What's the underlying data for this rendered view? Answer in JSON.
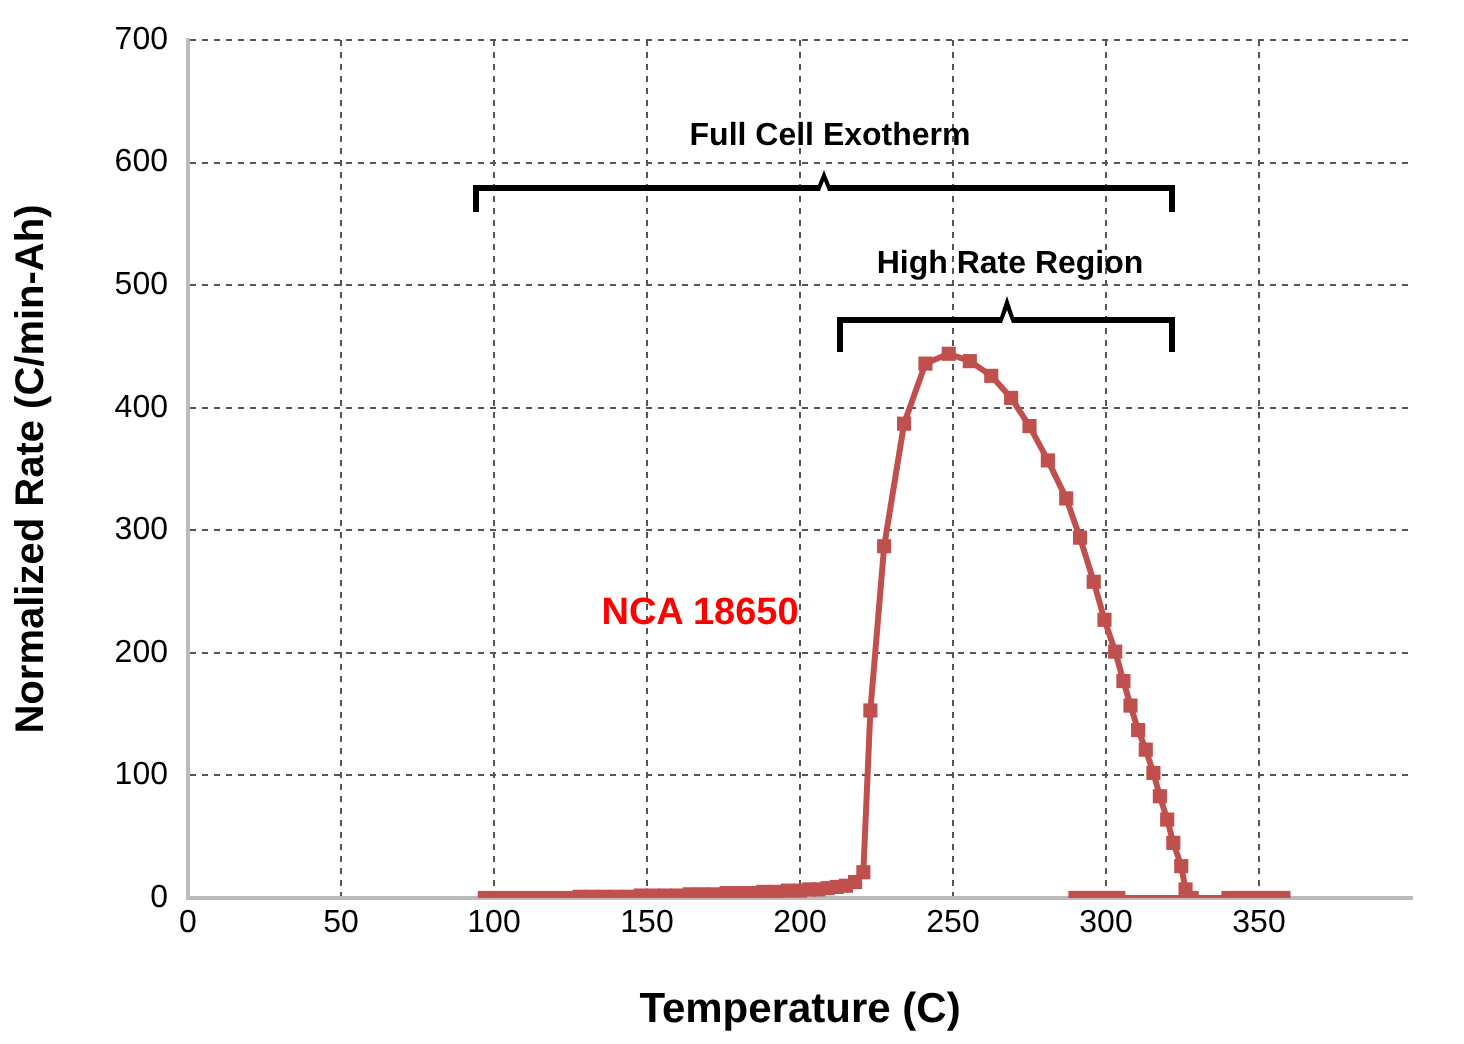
{
  "chart_data": {
    "type": "line",
    "xlabel": "Temperature (C)",
    "ylabel": "Normalized Rate (C/min-Ah)",
    "xlim": [
      0,
      400
    ],
    "xticks": [
      0,
      50,
      100,
      150,
      200,
      250,
      300,
      350
    ],
    "ylim": [
      0,
      700
    ],
    "yticks": [
      0,
      100,
      200,
      300,
      400,
      500,
      600,
      700
    ],
    "grid": true,
    "legend": false,
    "marker": "square",
    "line_style": "solid",
    "annotations": [
      "Full Cell Exotherm",
      "High Rate Region"
    ],
    "series": [
      {
        "name": "NCA 18650",
        "color": "#c0504d",
        "x": [
          97,
          100,
          104,
          108,
          112,
          116,
          120,
          124,
          128,
          132,
          136,
          140,
          144,
          148,
          152,
          156,
          160,
          164,
          168,
          172,
          176,
          180,
          184,
          188,
          192,
          196,
          200,
          203,
          206,
          209,
          212,
          215,
          218,
          220.7,
          223,
          227.5,
          234,
          241,
          248.6,
          255.5,
          262.5,
          269,
          275,
          281,
          287,
          291.5,
          296,
          299.5,
          303,
          305.7,
          308,
          310.5,
          313,
          315.5,
          317.6,
          320,
          322,
          324.6,
          326,
          328
        ],
        "values": [
          0,
          0,
          0,
          0,
          0,
          0,
          0,
          0,
          1,
          1,
          1,
          1,
          1,
          2,
          2,
          2,
          2,
          3,
          3,
          3,
          4,
          4,
          4,
          5,
          5,
          6,
          6,
          7,
          7,
          8,
          9,
          10,
          13,
          21,
          153,
          287,
          387,
          436,
          444,
          438,
          426,
          408,
          385,
          357,
          326,
          294,
          258,
          227,
          201,
          177,
          157,
          137,
          121,
          102,
          83,
          64,
          45,
          26,
          7,
          0
        ]
      },
      {
        "color": "#c0504d",
        "x": [
          290,
          292,
          294,
          296,
          298,
          300,
          302,
          304,
          340,
          342,
          344,
          346,
          348,
          350,
          352,
          354,
          356,
          358
        ],
        "values": [
          0,
          0,
          0,
          0,
          0,
          0,
          0,
          0,
          0,
          0,
          0,
          0,
          0,
          0,
          0,
          0,
          0,
          0
        ]
      }
    ]
  }
}
